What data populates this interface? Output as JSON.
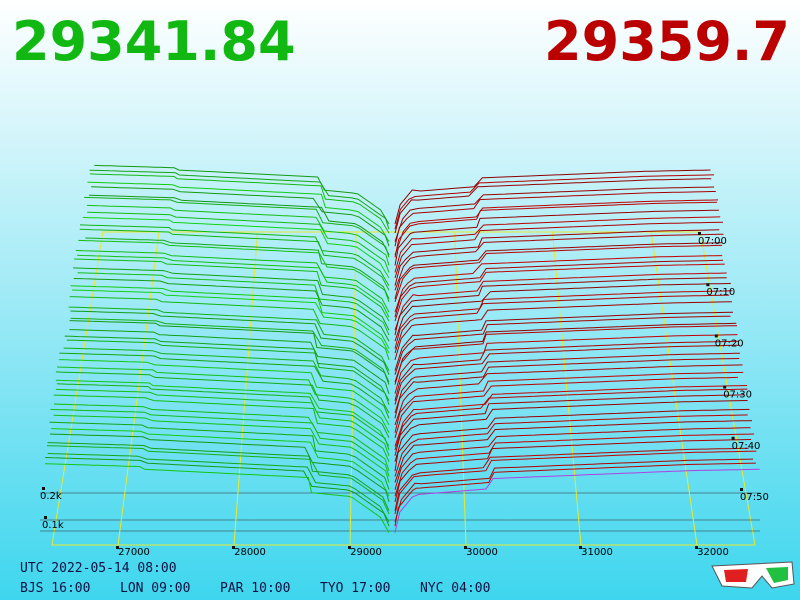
{
  "header": {
    "bid": "29341.84",
    "ask": "29359.7"
  },
  "price_axis": [
    "27000",
    "28000",
    "29000",
    "30000",
    "31000",
    "32000"
  ],
  "time_axis": [
    "07:00",
    "07:10",
    "07:20",
    "07:30",
    "07:40",
    "07:50"
  ],
  "depth_axis": [
    "0.2k",
    "0.1k"
  ],
  "footer": {
    "utc": "UTC 2022-05-14 08:00",
    "zones": [
      "BJS 16:00",
      "LON 09:00",
      "PAR 10:00",
      "TYO 17:00",
      "NYC 04:00"
    ]
  }
}
